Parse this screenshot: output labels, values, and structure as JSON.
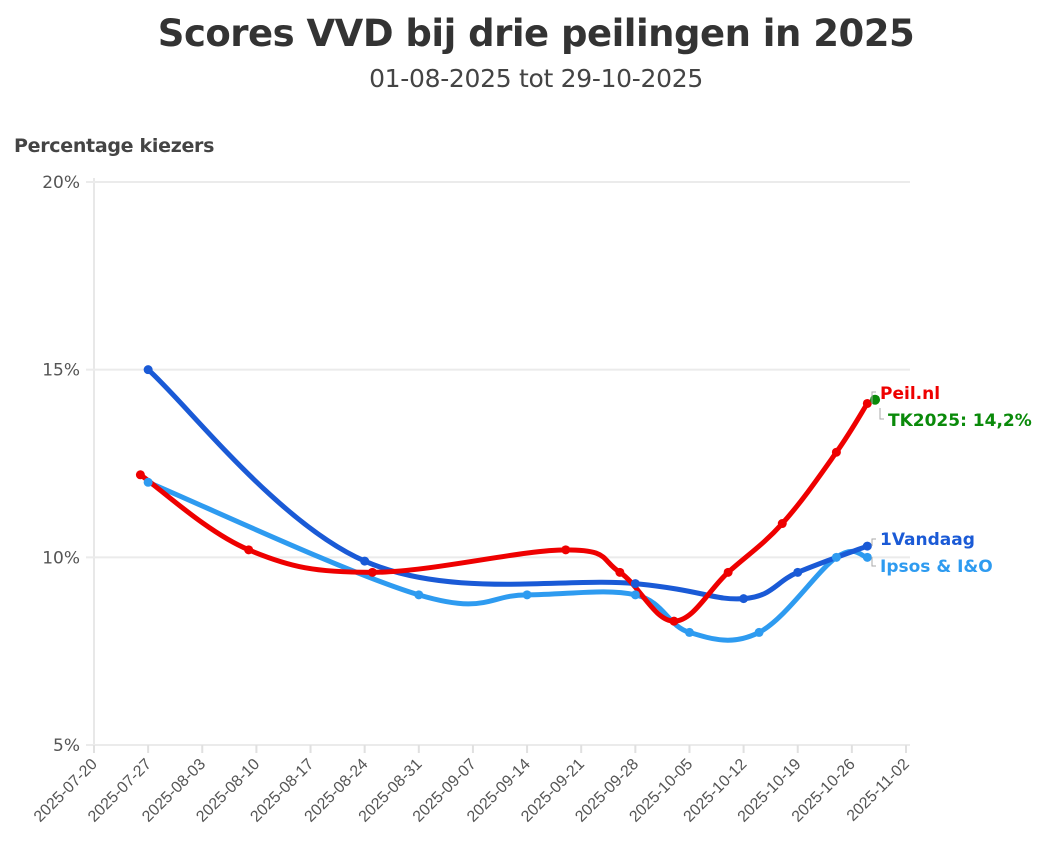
{
  "header": {
    "title": "Scores VVD bij drie peilingen in 2025",
    "subtitle": "01-08-2025 tot 29-10-2025",
    "y_axis_title": "Percentage kiezers"
  },
  "chart_data": {
    "type": "line",
    "title": "Scores VVD bij drie peilingen in 2025",
    "subtitle": "01-08-2025 tot 29-10-2025",
    "xlabel": "",
    "ylabel": "Percentage kiezers",
    "ylim": [
      5,
      20
    ],
    "yticks": [
      "5%",
      "10%",
      "15%",
      "20%"
    ],
    "ytick_values": [
      5,
      10,
      15,
      20
    ],
    "xlim": [
      "2025-07-20",
      "2025-11-02"
    ],
    "xticks": [
      "2025-07-20",
      "2025-07-27",
      "2025-08-03",
      "2025-08-10",
      "2025-08-17",
      "2025-08-24",
      "2025-08-31",
      "2025-09-07",
      "2025-09-14",
      "2025-09-21",
      "2025-09-28",
      "2025-10-05",
      "2025-10-12",
      "2025-10-19",
      "2025-10-26",
      "2025-11-02"
    ],
    "grid": "horizontal",
    "legend": "direct labels at line ends (right)",
    "series": [
      {
        "name": "Peil.nl",
        "color": "#ee0000",
        "points": [
          {
            "x": "2025-07-26",
            "y": 12.2
          },
          {
            "x": "2025-08-09",
            "y": 10.2
          },
          {
            "x": "2025-08-25",
            "y": 9.6
          },
          {
            "x": "2025-09-19",
            "y": 10.2
          },
          {
            "x": "2025-09-26",
            "y": 9.6
          },
          {
            "x": "2025-10-03",
            "y": 8.3
          },
          {
            "x": "2025-10-10",
            "y": 9.6
          },
          {
            "x": "2025-10-17",
            "y": 10.9
          },
          {
            "x": "2025-10-24",
            "y": 12.8
          },
          {
            "x": "2025-10-28",
            "y": 14.1
          }
        ]
      },
      {
        "name": "1Vandaag",
        "color": "#1a5ad6",
        "points": [
          {
            "x": "2025-07-27",
            "y": 15.0
          },
          {
            "x": "2025-08-24",
            "y": 9.9
          },
          {
            "x": "2025-09-28",
            "y": 9.3
          },
          {
            "x": "2025-10-12",
            "y": 8.9
          },
          {
            "x": "2025-10-19",
            "y": 9.6
          },
          {
            "x": "2025-10-28",
            "y": 10.3
          }
        ]
      },
      {
        "name": "Ipsos & I&O",
        "color": "#2e9bf0",
        "points": [
          {
            "x": "2025-07-27",
            "y": 12.0
          },
          {
            "x": "2025-08-31",
            "y": 9.0
          },
          {
            "x": "2025-09-14",
            "y": 9.0
          },
          {
            "x": "2025-09-28",
            "y": 9.0
          },
          {
            "x": "2025-10-05",
            "y": 8.0
          },
          {
            "x": "2025-10-14",
            "y": 8.0
          },
          {
            "x": "2025-10-24",
            "y": 10.0
          },
          {
            "x": "2025-10-28",
            "y": 10.0
          }
        ]
      }
    ],
    "annotations": [
      {
        "label": "TK2025: 14,2%",
        "x": "2025-10-29",
        "y": 14.2,
        "color": "#0a8a0a"
      }
    ]
  },
  "labels": {
    "peil": "Peil.nl",
    "tk2025": "TK2025: 14,2%",
    "vandaag": "1Vandaag",
    "ipsos": "Ipsos & I&O"
  }
}
